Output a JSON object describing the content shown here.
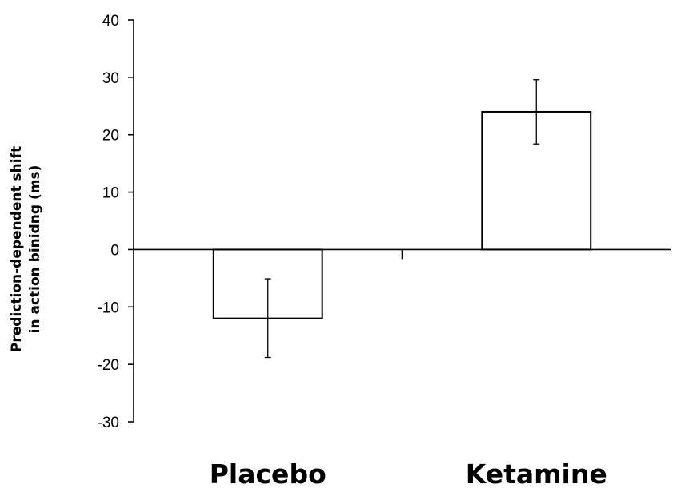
{
  "chart_data": {
    "type": "bar",
    "categories": [
      "Placebo",
      "Ketamine"
    ],
    "values": [
      -12,
      24
    ],
    "error_low": [
      -18.8,
      18.4
    ],
    "error_high": [
      -5.1,
      29.6
    ],
    "ylabel_lines": [
      "Prediction-dependent shift",
      "in action binidng (ms)"
    ],
    "ylim": [
      -30,
      40
    ],
    "yticks": [
      40,
      30,
      20,
      10,
      0,
      -10,
      -20,
      -30
    ],
    "grid": false,
    "bar_fill": "#ffffff",
    "bar_stroke": "#000000"
  }
}
